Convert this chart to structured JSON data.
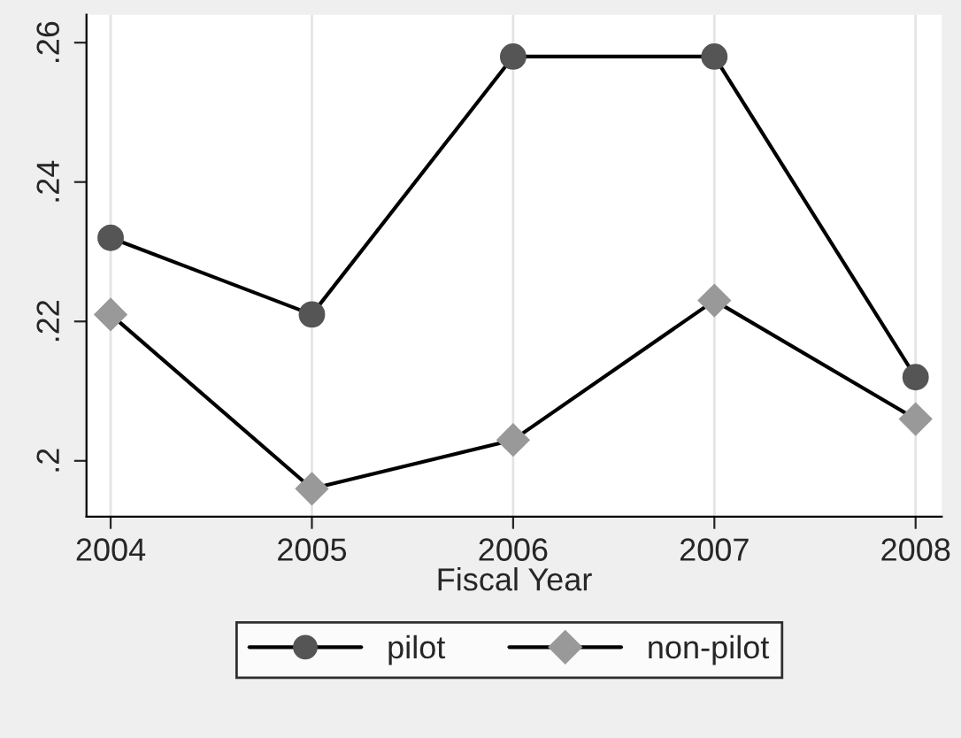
{
  "chart_data": {
    "type": "line",
    "xlabel": "Fiscal Year",
    "x": [
      2004,
      2005,
      2006,
      2007,
      2008
    ],
    "series": [
      {
        "name": "pilot",
        "color": "#555555",
        "marker": "circle",
        "values": [
          0.232,
          0.221,
          0.258,
          0.258,
          0.212
        ]
      },
      {
        "name": "non-pilot",
        "color": "#999999",
        "marker": "diamond",
        "values": [
          0.221,
          0.196,
          0.203,
          0.223,
          0.206
        ]
      }
    ],
    "xlim": [
      2003.88,
      2008.13
    ],
    "xticks": [
      2004,
      2005,
      2006,
      2007,
      2008
    ],
    "ylim": [
      0.192,
      0.264
    ],
    "yticks": [
      {
        "value": 0.2,
        "label": ".2"
      },
      {
        "value": 0.22,
        "label": ".22"
      },
      {
        "value": 0.24,
        "label": ".24"
      },
      {
        "value": 0.26,
        "label": ".26"
      }
    ],
    "grid": "x",
    "legend": "bottom",
    "line_style": "solid"
  }
}
